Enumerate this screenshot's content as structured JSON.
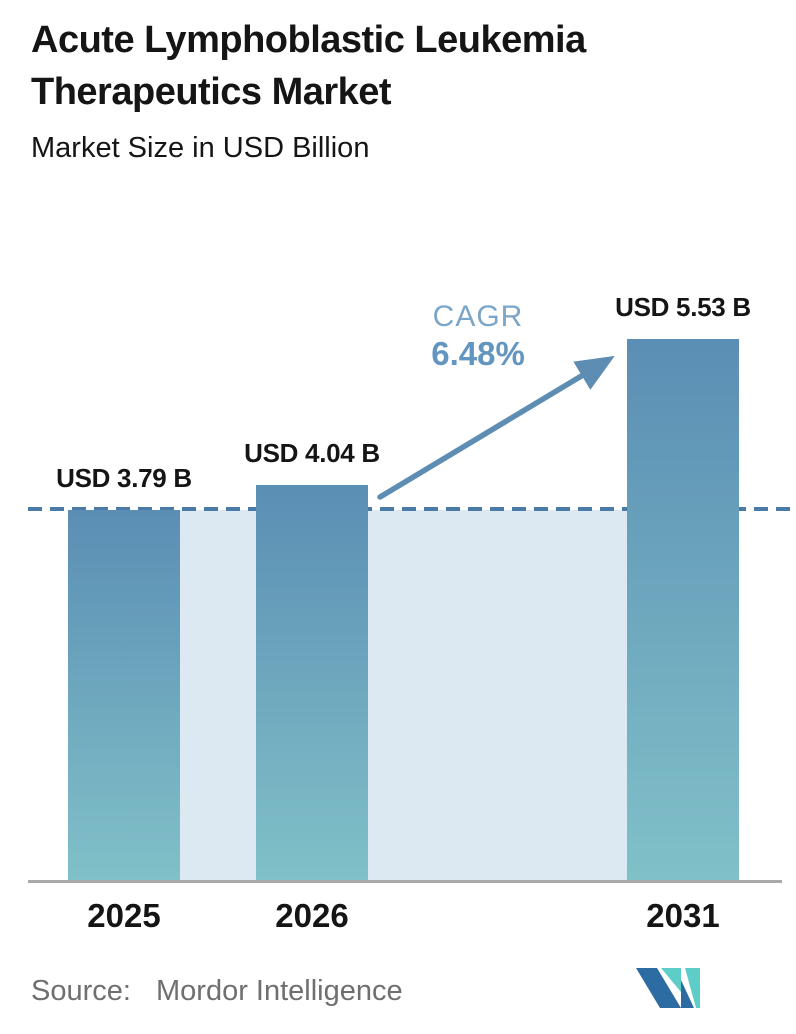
{
  "header": {
    "title_line1": "Acute Lymphoblastic Leukemia",
    "title_line2": "Therapeutics Market",
    "subtitle": "Market Size in USD Billion"
  },
  "chart_data": {
    "type": "bar",
    "title": "Acute Lymphoblastic Leukemia Therapeutics Market",
    "subtitle": "Market Size in USD Billion",
    "unit": "USD Billion",
    "categories": [
      "2025",
      "2026",
      "2031"
    ],
    "values": [
      3.79,
      4.04,
      5.53
    ],
    "bar_labels": [
      "USD 3.79 B",
      "USD 4.04 B",
      "USD 5.53 B"
    ],
    "cagr_label": "CAGR",
    "cagr_value": "6.48%",
    "ylim": [
      0,
      5.9
    ],
    "grid": false,
    "legend": "none",
    "reference_line_value": 3.79,
    "reference_line_style": "dashed"
  },
  "footer": {
    "source_label": "Source:",
    "source_value": "Mordor Intelligence",
    "logo_name": "mordor-intelligence-logo"
  },
  "colors": {
    "bar_gradient_top": "#5b8eb4",
    "bar_gradient_bottom": "#80c1c8",
    "background_band": "#dde9f2",
    "dashed_line": "#4a7aa6",
    "arrow": "#5e8db4",
    "cagr_label_text": "#7ca6c8",
    "cagr_value_text": "#6295bf",
    "axis_line": "#a9a9a9",
    "text": "#151515",
    "source_text": "#6f6f6f",
    "logo_blue": "#2d6ba3",
    "logo_teal": "#5ecdc8"
  }
}
